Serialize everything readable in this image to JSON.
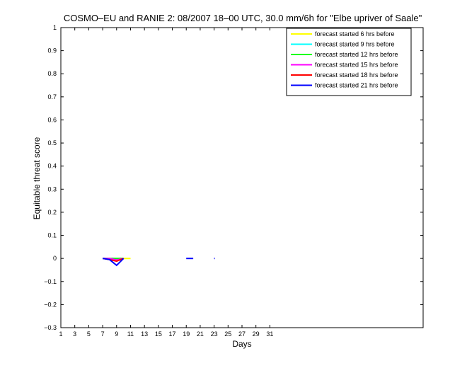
{
  "chart_data": {
    "type": "line",
    "title": "COSMO–EU and RANIE 2: 08/2007 18–00 UTC, 30.0 mm/6h for \"Elbe upriver of Saale\"",
    "xlabel": "Days",
    "ylabel": "Equitable threat score",
    "xlim": [
      1,
      53
    ],
    "ylim": [
      -0.3,
      1
    ],
    "xticks": [
      1,
      3,
      5,
      7,
      9,
      11,
      13,
      15,
      17,
      19,
      21,
      23,
      25,
      27,
      29,
      31
    ],
    "yticks": [
      -0.3,
      -0.2,
      -0.1,
      0,
      0.1,
      0.2,
      0.3,
      0.4,
      0.5,
      0.6,
      0.7,
      0.8,
      0.9,
      1
    ],
    "legend_position": "top-right",
    "grid": false,
    "series": [
      {
        "name": "forecast started 6 hrs before",
        "color": "#ffff00",
        "points": [
          [
            7,
            0
          ],
          [
            8,
            0
          ],
          [
            9,
            0
          ],
          [
            10,
            0
          ],
          [
            11,
            0
          ]
        ]
      },
      {
        "name": "forecast started 9 hrs before",
        "color": "#00ffff",
        "points": [
          [
            7,
            0
          ],
          [
            8,
            0
          ],
          [
            9,
            0
          ],
          [
            10,
            0
          ]
        ]
      },
      {
        "name": "forecast started 12 hrs before",
        "color": "#00ff00",
        "points": [
          [
            7,
            0
          ],
          [
            8,
            0
          ],
          [
            9,
            0
          ],
          [
            10,
            0
          ]
        ]
      },
      {
        "name": "forecast started 15 hrs before",
        "color": "#ff00ff",
        "points": [
          [
            7,
            0
          ],
          [
            8,
            0
          ],
          [
            9,
            -0.007
          ],
          [
            10,
            0
          ]
        ]
      },
      {
        "name": "forecast started 18 hrs before",
        "color": "#ff0000",
        "points": [
          [
            7,
            0
          ],
          [
            8,
            -0.005
          ],
          [
            9,
            -0.012
          ],
          [
            10,
            0
          ]
        ]
      },
      {
        "name": "forecast started 21 hrs before",
        "color": "#0000ff",
        "points": [
          [
            7,
            0
          ],
          [
            8,
            -0.005
          ],
          [
            9,
            -0.03
          ],
          [
            10,
            0
          ]
        ]
      },
      {
        "name": "",
        "color": "#0000ff",
        "points": [
          [
            19,
            0
          ],
          [
            20,
            0
          ]
        ]
      },
      {
        "name": "",
        "color": "#0000ff",
        "points": [
          [
            23,
            0
          ],
          [
            23.1,
            0
          ]
        ]
      }
    ]
  }
}
